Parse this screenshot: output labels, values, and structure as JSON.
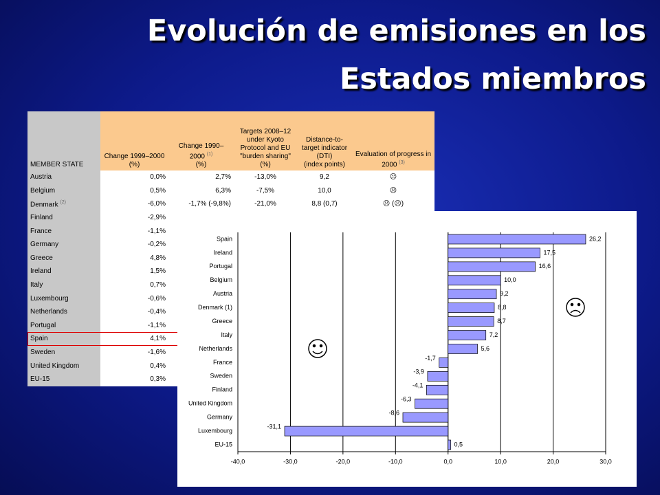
{
  "title": "Evolución de emisiones en los Estados miembros",
  "table": {
    "header": [
      {
        "text": "MEMBER STATE"
      },
      {
        "text": "Change 1999–2000",
        "unit": "(%)"
      },
      {
        "text": "Change 1990–2000",
        "note": "(1)",
        "unit": "(%)"
      },
      {
        "text": "Targets 2008–12 under Kyoto Protocol and EU \"burden sharing\"",
        "unit": "(%)"
      },
      {
        "text": "Distance-to-target indicator (DTI)",
        "unit": "(index points)"
      },
      {
        "text": "Evaluation of progress in 2000",
        "note": "(3)"
      }
    ],
    "rows": [
      {
        "state": "Austria",
        "cells": [
          "0,0%",
          "2,7%",
          "-13,0%",
          "9,2",
          "☹"
        ]
      },
      {
        "state": "Belgium",
        "cells": [
          "0,5%",
          "6,3%",
          "-7,5%",
          "10,0",
          "☹"
        ]
      },
      {
        "state": "Denmark",
        "note": "(2)",
        "cells": [
          "-6,0%",
          "-1,7% (-9,8%)",
          "-21,0%",
          "8,8 (0,7)",
          "☹ (☹)"
        ]
      },
      {
        "state": "Finland",
        "cells": [
          "-2,9%"
        ]
      },
      {
        "state": "France",
        "cells": [
          "-1,1%"
        ]
      },
      {
        "state": "Germany",
        "cells": [
          "-0,2%"
        ]
      },
      {
        "state": "Greece",
        "cells": [
          "4,8%"
        ]
      },
      {
        "state": "Ireland",
        "cells": [
          "1,5%"
        ]
      },
      {
        "state": "Italy",
        "cells": [
          "0,7%"
        ]
      },
      {
        "state": "Luxembourg",
        "cells": [
          "-0,6%"
        ]
      },
      {
        "state": "Netherlands",
        "cells": [
          "-0,4%"
        ]
      },
      {
        "state": "Portugal",
        "cells": [
          "-1,1%"
        ]
      },
      {
        "state": "Spain",
        "cells": [
          "4,1%"
        ],
        "highlighted": true
      },
      {
        "state": "Sweden",
        "cells": [
          "-1,6%"
        ]
      },
      {
        "state": "United Kingdom",
        "cells": [
          "0,4%"
        ]
      },
      {
        "state": "EU-15",
        "cells": [
          "0,3%"
        ]
      }
    ]
  },
  "chart_data": {
    "type": "hbar",
    "categories": [
      "Spain",
      "Ireland",
      "Portugal",
      "Belgium",
      "Austria",
      "Denmark (1)",
      "Greece",
      "Italy",
      "Netherlands",
      "France",
      "Sweden",
      "Finland",
      "United Kingdom",
      "Germany",
      "Luxembourg",
      "EU-15"
    ],
    "values": [
      26.2,
      17.5,
      16.6,
      10.0,
      9.2,
      8.8,
      8.7,
      7.2,
      5.6,
      -1.7,
      -3.9,
      -4.1,
      -6.3,
      -8.6,
      -31.1,
      0.5
    ],
    "value_labels": [
      "26,2",
      "17,5",
      "16,6",
      "10,0",
      "9,2",
      "8,8",
      "8,7",
      "7,2",
      "5,6",
      "-1,7",
      "-3,9",
      "-4,1",
      "-6,3",
      "-8,6",
      "-31,1",
      "0,5"
    ],
    "color": "#9999ff",
    "xlim": [
      -40,
      30
    ],
    "xticks": [
      {
        "value": -40,
        "label": "-40,0"
      },
      {
        "value": -30,
        "label": "-30,0"
      },
      {
        "value": -20,
        "label": "-20,0"
      },
      {
        "value": -10,
        "label": "-10,0"
      },
      {
        "value": 0,
        "label": "0,0"
      },
      {
        "value": 10,
        "label": "10,0"
      },
      {
        "value": 20,
        "label": "20,0"
      },
      {
        "value": 30,
        "label": "30,0"
      }
    ],
    "grid": true
  }
}
